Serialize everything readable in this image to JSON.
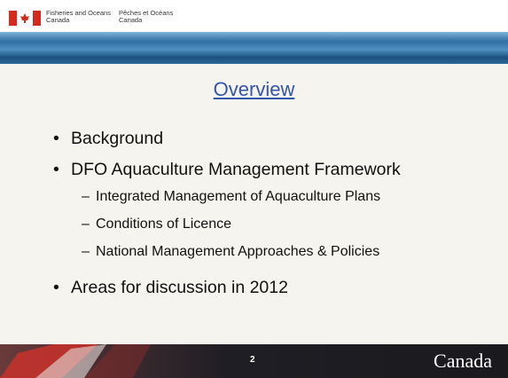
{
  "header": {
    "department_en": [
      "Fisheries and Oceans",
      "Canada"
    ],
    "department_fr": [
      "Pêches et Océans",
      "Canada"
    ]
  },
  "title": "Overview",
  "bullets": [
    {
      "text": "Background",
      "sub": []
    },
    {
      "text": "DFO Aquaculture Management Framework",
      "sub": [
        "Integrated Management of Aquaculture Plans",
        "Conditions of Licence",
        "National Management Approaches & Policies"
      ]
    },
    {
      "text": "Areas for discussion in 2012",
      "sub": []
    }
  ],
  "footer": {
    "page_number": "2",
    "wordmark": "Canada"
  }
}
